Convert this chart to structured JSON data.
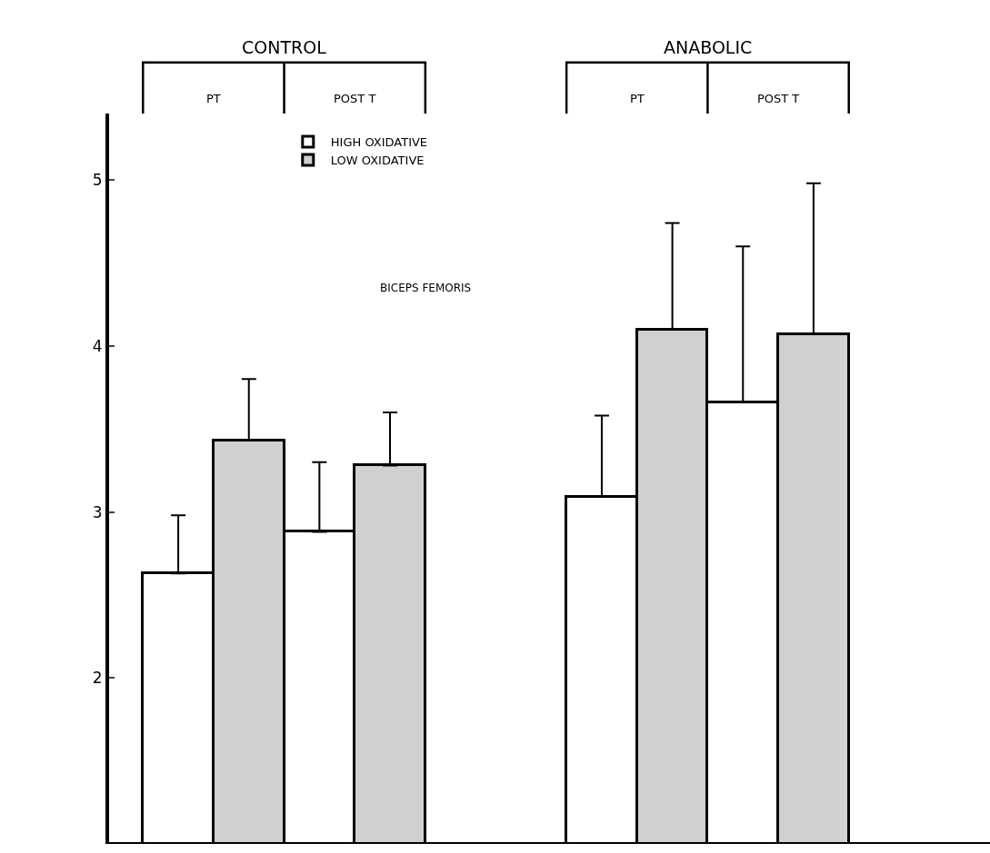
{
  "chart_data": {
    "type": "bar",
    "subtitle": "BICEPS FEMORIS",
    "categories": [
      "PT",
      "POST T",
      null,
      "PT",
      "POST T"
    ],
    "annotations": [
      "CONTROL",
      "ANABOLIC"
    ],
    "series": [
      {
        "name": "HIGH OXIDATIVE",
        "color": "#ffffff",
        "values": [
          2.63,
          2.88,
          null,
          3.09,
          3.66
        ],
        "errors": [
          [
            2.63,
            2.98
          ],
          [
            2.88,
            3.3
          ],
          null,
          [
            3.09,
            3.58
          ],
          [
            3.66,
            4.6
          ]
        ]
      },
      {
        "name": "LOW OXIDATIVE",
        "color": "#d0d0d0",
        "values": [
          3.43,
          3.28,
          null,
          4.1,
          4.07
        ],
        "errors": [
          [
            3.43,
            3.8
          ],
          [
            3.28,
            3.6
          ],
          null,
          [
            4.1,
            4.74
          ],
          [
            4.07,
            4.98
          ]
        ]
      }
    ],
    "ylim": [
      1,
      5.4
    ],
    "yticks": [
      2,
      3,
      4,
      5
    ],
    "legend": "top left"
  }
}
